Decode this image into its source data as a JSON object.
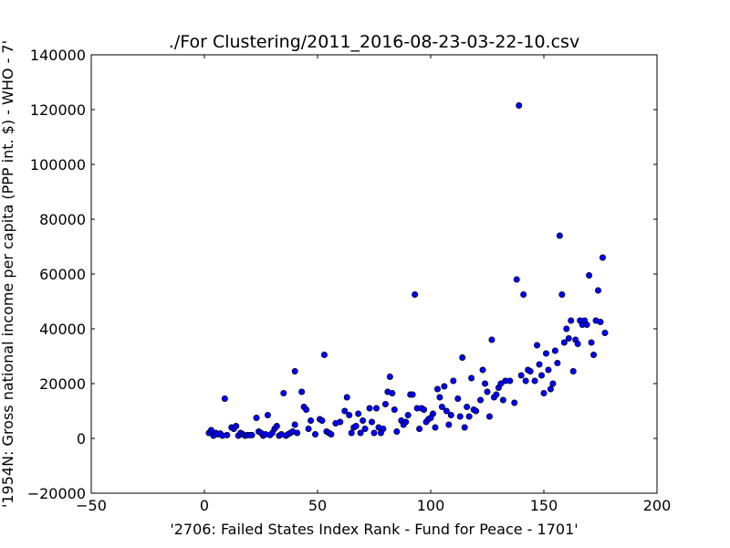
{
  "chart_data": {
    "type": "scatter",
    "title": "./For Clustering/2011_2016-08-23-03-22-10.csv",
    "xlabel": "'2706: Failed States Index Rank - Fund for Peace - 1701'",
    "ylabel": "'1954N: Gross national income per capita (PPP int. $) - WHO - 7'",
    "xlim": [
      -50,
      200
    ],
    "ylim": [
      -20000,
      140000
    ],
    "xticks": [
      -50,
      0,
      50,
      100,
      150,
      200
    ],
    "yticks": [
      -20000,
      0,
      20000,
      40000,
      60000,
      80000,
      100000,
      120000,
      140000
    ],
    "xtick_labels": [
      "−50",
      "0",
      "50",
      "100",
      "150",
      "200"
    ],
    "ytick_labels": [
      "−20000",
      "0",
      "20000",
      "40000",
      "60000",
      "80000",
      "100000",
      "120000",
      "140000"
    ],
    "grid": false,
    "marker_color": "#0000ff",
    "points": [
      [
        2,
        2000
      ],
      [
        3,
        3000
      ],
      [
        4,
        1000
      ],
      [
        5,
        2000
      ],
      [
        6,
        1500
      ],
      [
        7,
        1800
      ],
      [
        8,
        1000
      ],
      [
        9,
        14500
      ],
      [
        10,
        1200
      ],
      [
        12,
        4000
      ],
      [
        13,
        3500
      ],
      [
        14,
        4500
      ],
      [
        15,
        1000
      ],
      [
        16,
        2000
      ],
      [
        17,
        1500
      ],
      [
        18,
        1000
      ],
      [
        19,
        1200
      ],
      [
        20,
        1200
      ],
      [
        21,
        1200
      ],
      [
        23,
        7500
      ],
      [
        24,
        2500
      ],
      [
        25,
        2000
      ],
      [
        26,
        1000
      ],
      [
        27,
        1500
      ],
      [
        28,
        8500
      ],
      [
        29,
        1200
      ],
      [
        30,
        2000
      ],
      [
        31,
        3500
      ],
      [
        32,
        4500
      ],
      [
        33,
        1000
      ],
      [
        34,
        1500
      ],
      [
        35,
        16500
      ],
      [
        36,
        1000
      ],
      [
        37,
        1500
      ],
      [
        38,
        2000
      ],
      [
        39,
        2500
      ],
      [
        40,
        5000
      ],
      [
        40,
        24500
      ],
      [
        41,
        2000
      ],
      [
        43,
        17000
      ],
      [
        44,
        11500
      ],
      [
        45,
        10500
      ],
      [
        46,
        3500
      ],
      [
        47,
        6500
      ],
      [
        49,
        1500
      ],
      [
        51,
        7000
      ],
      [
        52,
        6500
      ],
      [
        53,
        30500
      ],
      [
        54,
        2500
      ],
      [
        55,
        2000
      ],
      [
        56,
        1500
      ],
      [
        58,
        5500
      ],
      [
        60,
        6000
      ],
      [
        62,
        10000
      ],
      [
        63,
        15000
      ],
      [
        64,
        8500
      ],
      [
        65,
        2000
      ],
      [
        66,
        4000
      ],
      [
        67,
        4500
      ],
      [
        68,
        9000
      ],
      [
        69,
        2000
      ],
      [
        70,
        6500
      ],
      [
        71,
        3500
      ],
      [
        73,
        11000
      ],
      [
        74,
        6000
      ],
      [
        75,
        2000
      ],
      [
        76,
        11000
      ],
      [
        77,
        4000
      ],
      [
        78,
        2000
      ],
      [
        79,
        3500
      ],
      [
        80,
        12500
      ],
      [
        81,
        17000
      ],
      [
        82,
        22500
      ],
      [
        83,
        16500
      ],
      [
        84,
        10500
      ],
      [
        85,
        2500
      ],
      [
        87,
        6500
      ],
      [
        88,
        5000
      ],
      [
        89,
        6000
      ],
      [
        90,
        8500
      ],
      [
        91,
        16000
      ],
      [
        92,
        16000
      ],
      [
        93,
        52500
      ],
      [
        94,
        11000
      ],
      [
        95,
        3500
      ],
      [
        96,
        11000
      ],
      [
        97,
        10500
      ],
      [
        98,
        6000
      ],
      [
        99,
        7000
      ],
      [
        100,
        7500
      ],
      [
        101,
        9000
      ],
      [
        102,
        4000
      ],
      [
        103,
        18000
      ],
      [
        104,
        15000
      ],
      [
        105,
        11500
      ],
      [
        106,
        19000
      ],
      [
        107,
        10000
      ],
      [
        108,
        5000
      ],
      [
        109,
        8500
      ],
      [
        110,
        21000
      ],
      [
        112,
        14500
      ],
      [
        113,
        8000
      ],
      [
        114,
        29500
      ],
      [
        115,
        4000
      ],
      [
        116,
        11500
      ],
      [
        117,
        8000
      ],
      [
        118,
        22000
      ],
      [
        119,
        10500
      ],
      [
        120,
        10000
      ],
      [
        122,
        14000
      ],
      [
        123,
        25000
      ],
      [
        124,
        20000
      ],
      [
        125,
        17000
      ],
      [
        126,
        8000
      ],
      [
        127,
        36000
      ],
      [
        128,
        15000
      ],
      [
        129,
        16000
      ],
      [
        130,
        18500
      ],
      [
        131,
        20000
      ],
      [
        132,
        14000
      ],
      [
        133,
        21000
      ],
      [
        135,
        21000
      ],
      [
        137,
        13000
      ],
      [
        138,
        58000
      ],
      [
        139,
        121500
      ],
      [
        140,
        23000
      ],
      [
        141,
        52500
      ],
      [
        142,
        21000
      ],
      [
        143,
        25000
      ],
      [
        144,
        24500
      ],
      [
        146,
        21000
      ],
      [
        147,
        34000
      ],
      [
        148,
        27000
      ],
      [
        149,
        23000
      ],
      [
        150,
        16500
      ],
      [
        151,
        31000
      ],
      [
        152,
        25000
      ],
      [
        153,
        18000
      ],
      [
        154,
        20000
      ],
      [
        155,
        32000
      ],
      [
        156,
        27500
      ],
      [
        157,
        74000
      ],
      [
        158,
        52500
      ],
      [
        159,
        35000
      ],
      [
        160,
        40000
      ],
      [
        161,
        36500
      ],
      [
        162,
        43000
      ],
      [
        163,
        24500
      ],
      [
        164,
        36000
      ],
      [
        165,
        34500
      ],
      [
        166,
        43000
      ],
      [
        167,
        41500
      ],
      [
        168,
        43000
      ],
      [
        169,
        41500
      ],
      [
        170,
        59500
      ],
      [
        171,
        35000
      ],
      [
        172,
        30500
      ],
      [
        173,
        43000
      ],
      [
        174,
        54000
      ],
      [
        175,
        42500
      ],
      [
        176,
        66000
      ],
      [
        177,
        38500
      ]
    ]
  }
}
